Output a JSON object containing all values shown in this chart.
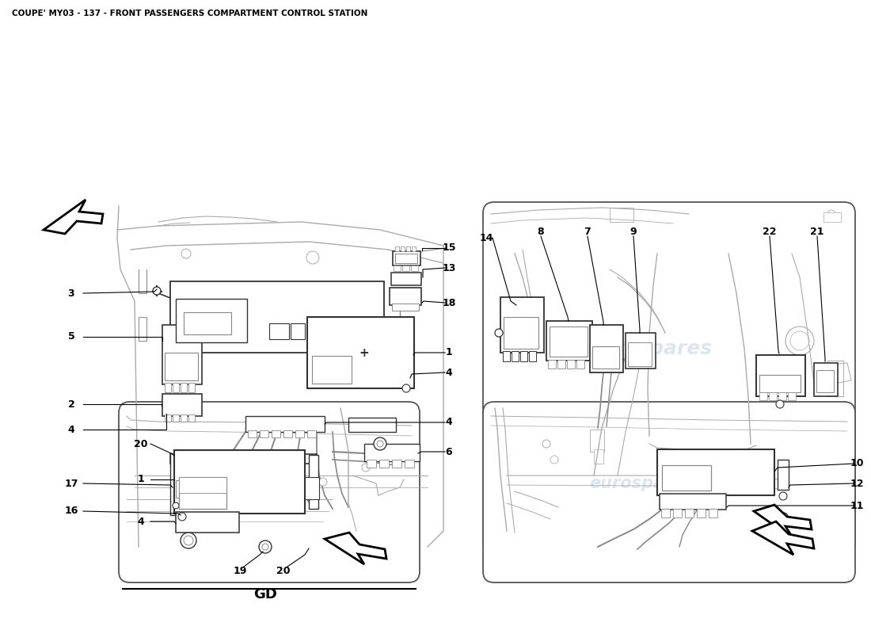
{
  "title": "COUPE' MY03 - 137 - FRONT PASSENGERS COMPARTMENT CONTROL STATION",
  "title_fontsize": 7.5,
  "background_color": "#ffffff",
  "watermark_text": "eurospares",
  "watermark_color": "#b0c8dc",
  "watermark_alpha": 0.45,
  "line_color": "#333333",
  "sketch_color": "#888888",
  "light_sketch": "#aaaaaa",
  "gd_label": "GD"
}
